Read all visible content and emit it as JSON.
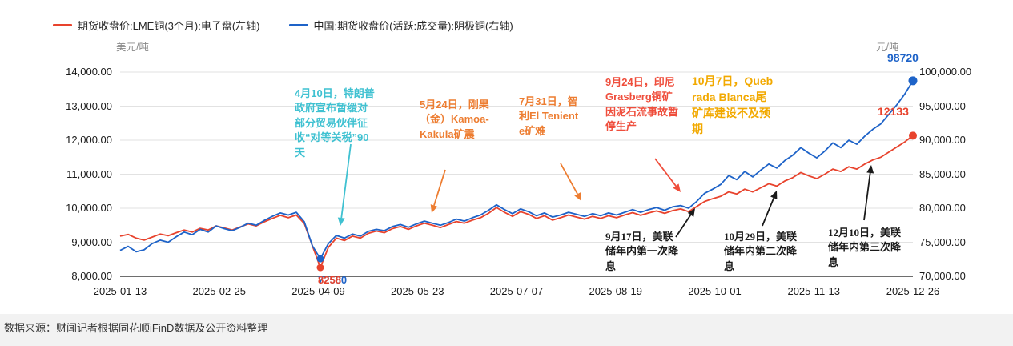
{
  "chart_data": {
    "type": "line",
    "title": "",
    "left_axis": {
      "unit": "美元/吨",
      "min": 8000,
      "max": 14000,
      "ticks": [
        "14,000.00",
        "13,000.00",
        "12,000.00",
        "11,000.00",
        "10,000.00",
        "9,000.00",
        "8,000.00"
      ]
    },
    "right_axis": {
      "unit": "元/吨",
      "min": 70000,
      "max": 100000,
      "ticks": [
        "100,000.00",
        "95,000.00",
        "90,000.00",
        "85,000.00",
        "80,000.00",
        "75,000.00",
        "70,000.00"
      ]
    },
    "x_tick_labels": [
      "2025-01-13",
      "2025-02-25",
      "2025-04-09",
      "2025-05-23",
      "2025-07-07",
      "2025-08-19",
      "2025-10-01",
      "2025-11-13",
      "2025-12-26"
    ],
    "series": [
      {
        "name": "期货收盘价:LME铜(3个月):电子盘(左轴)",
        "axis": "left",
        "color": "#e8432d",
        "values": [
          9180,
          9230,
          9120,
          9060,
          9150,
          9240,
          9190,
          9280,
          9360,
          9300,
          9410,
          9360,
          9480,
          9420,
          9360,
          9450,
          9540,
          9480,
          9600,
          9700,
          9790,
          9720,
          9800,
          9550,
          8900,
          8258,
          8850,
          9120,
          9050,
          9180,
          9120,
          9260,
          9330,
          9280,
          9400,
          9460,
          9380,
          9480,
          9560,
          9500,
          9430,
          9520,
          9610,
          9560,
          9650,
          9720,
          9850,
          10020,
          9880,
          9760,
          9900,
          9820,
          9700,
          9780,
          9650,
          9720,
          9800,
          9740,
          9680,
          9760,
          9700,
          9780,
          9720,
          9800,
          9870,
          9790,
          9860,
          9920,
          9850,
          9930,
          9980,
          9900,
          10050,
          10200,
          10280,
          10350,
          10480,
          10420,
          10560,
          10480,
          10600,
          10720,
          10650,
          10800,
          10900,
          11050,
          10950,
          10870,
          11000,
          11150,
          11080,
          11220,
          11150,
          11300,
          11420,
          11500,
          11650,
          11800,
          11950,
          12133
        ]
      },
      {
        "name": "中国:期货收盘价(活跃:成交量):阴极铜(右轴)",
        "axis": "right",
        "color": "#1e63c8",
        "values": [
          73800,
          74400,
          73600,
          73900,
          74800,
          75300,
          75000,
          75800,
          76500,
          76100,
          76900,
          76500,
          77400,
          77000,
          76700,
          77200,
          77800,
          77500,
          78200,
          78800,
          79300,
          79000,
          79400,
          78000,
          74500,
          72580,
          74800,
          76000,
          75600,
          76200,
          75900,
          76600,
          76900,
          76700,
          77300,
          77600,
          77200,
          77700,
          78100,
          77800,
          77500,
          77900,
          78400,
          78100,
          78600,
          79000,
          79700,
          80500,
          79800,
          79200,
          79900,
          79500,
          78900,
          79300,
          78700,
          79000,
          79400,
          79100,
          78800,
          79200,
          78900,
          79300,
          79000,
          79400,
          79800,
          79400,
          79800,
          80100,
          79700,
          80200,
          80400,
          80000,
          81000,
          82200,
          82800,
          83500,
          84800,
          84200,
          85400,
          84600,
          85600,
          86500,
          85900,
          87000,
          87800,
          88900,
          88100,
          87400,
          88400,
          89600,
          88900,
          90000,
          89400,
          90600,
          91600,
          92400,
          93800,
          95200,
          96800,
          98720
        ]
      }
    ],
    "end_labels": {
      "lme": "12133",
      "shfe": "98720"
    },
    "dip_labels": {
      "lme": "8258",
      "shfe": "72580"
    },
    "annotations": [
      {
        "text": "4月10日，特朗普政府宣布暂缓对部分贸易伙伴征收“对等关税”90天",
        "color": "#3fc1d1"
      },
      {
        "text": "5月24日，刚果（金）Kamoa-Kakula矿震",
        "color": "#ed7d31"
      },
      {
        "text": "7月31日，智利El Teniente矿难",
        "color": "#ed7d31"
      },
      {
        "text": "9月24日，印尼Grasberg铜矿因泥石流事故暂停生产",
        "color": "#ef4e3c"
      },
      {
        "text": "10月7日，Quebrada Blanca尾矿库建设不及预期",
        "color": "#f2a900"
      },
      {
        "text": "9月17日，美联储年内第一次降息",
        "color": "#1a1a1a"
      },
      {
        "text": "10月29日，美联储年内第二次降息",
        "color": "#1a1a1a"
      },
      {
        "text": "12月10日，美联储年内第三次降息",
        "color": "#1a1a1a"
      }
    ]
  },
  "footer": {
    "source_text": "数据来源：财闻记者根据同花顺iFinD数据及公开资料整理"
  }
}
